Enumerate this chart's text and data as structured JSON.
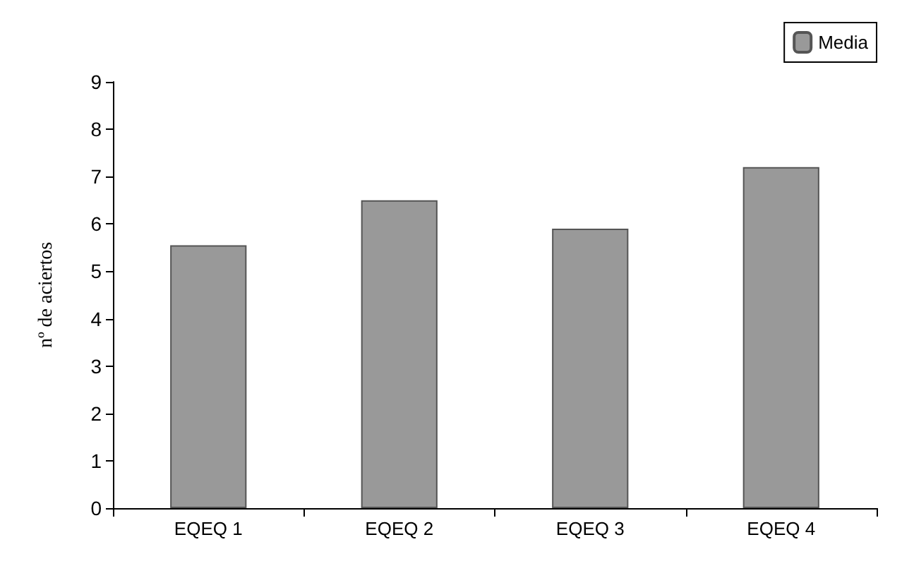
{
  "chart_data": {
    "type": "bar",
    "ylabel": "nº de aciertos",
    "categories": [
      "EQEQ 1",
      "EQEQ 2",
      "EQEQ 3",
      "EQEQ 4"
    ],
    "series": [
      {
        "name": "Media",
        "color": "#999999",
        "values": [
          5.55,
          6.5,
          5.9,
          7.2
        ]
      }
    ],
    "ylim": [
      0,
      9
    ],
    "yticks": [
      0,
      1,
      2,
      3,
      4,
      5,
      6,
      7,
      8,
      9
    ],
    "grid": false,
    "legend": "top right"
  }
}
